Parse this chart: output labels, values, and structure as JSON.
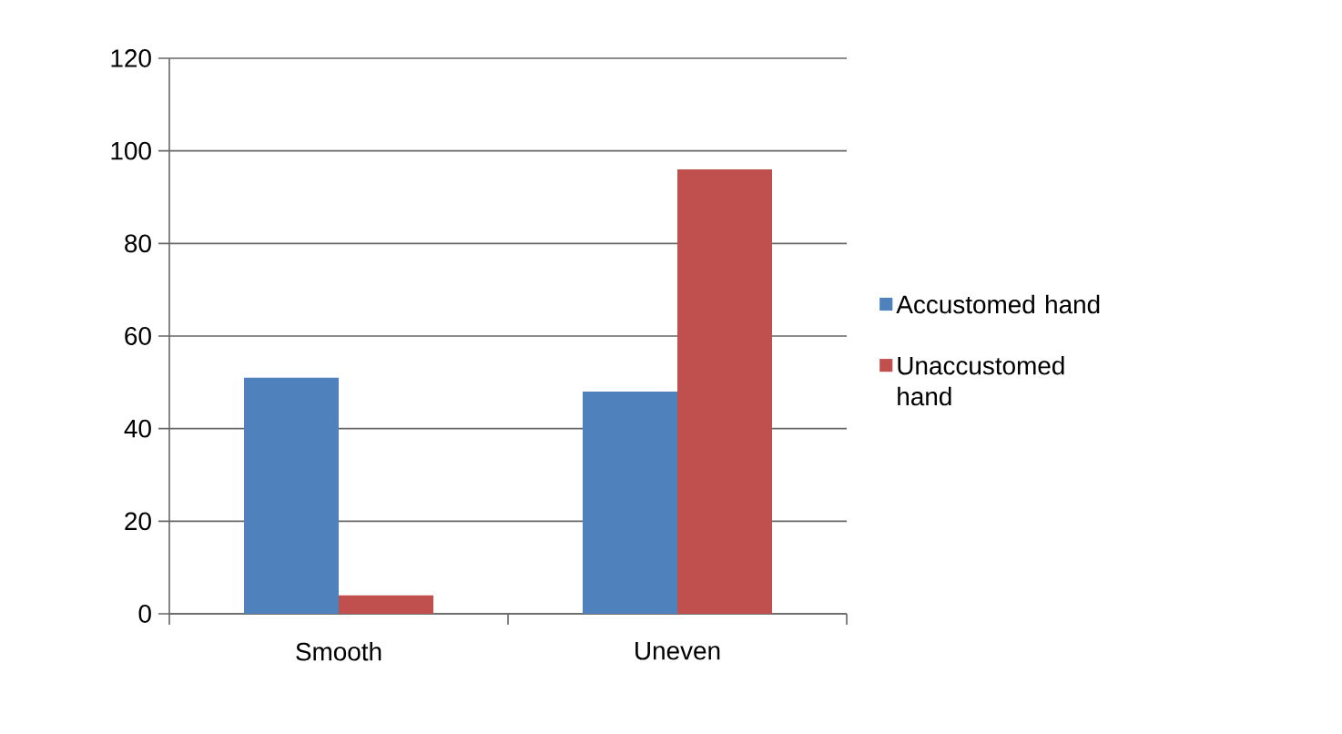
{
  "chart_data": {
    "type": "bar",
    "categories": [
      "Smooth",
      "Uneven"
    ],
    "series": [
      {
        "name": "Accustomed hand",
        "color": "#4f81bd",
        "values": [
          51,
          48
        ]
      },
      {
        "name": "Unaccustomed hand",
        "color": "#c0504d",
        "values": [
          4,
          96
        ]
      }
    ],
    "ylim": [
      0,
      120
    ],
    "yticks": [
      0,
      20,
      40,
      60,
      80,
      100,
      120
    ],
    "grid": "y",
    "legend": "right"
  }
}
